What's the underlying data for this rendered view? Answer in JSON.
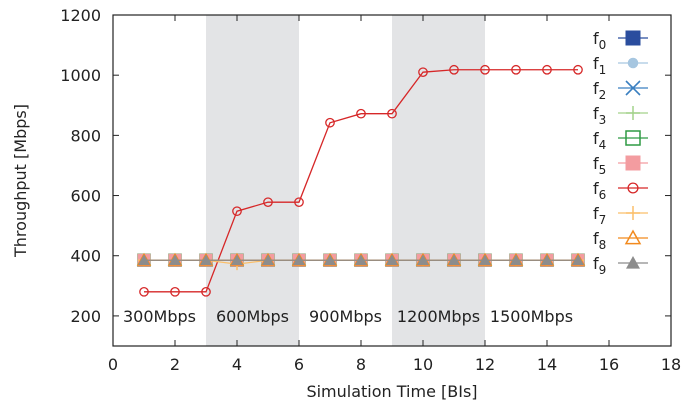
{
  "chart_data": {
    "type": "line",
    "xlabel": "Simulation Time [BIs]",
    "ylabel": "Throughput [Mbps]",
    "xlim": [
      0,
      18
    ],
    "ylim": [
      100,
      1200
    ],
    "xticks": [
      0,
      2,
      4,
      6,
      8,
      10,
      12,
      14,
      16,
      18
    ],
    "yticks": [
      200,
      400,
      600,
      800,
      1000,
      1200
    ],
    "grid": false,
    "legend_position": "right",
    "shaded_bands": [
      {
        "from": 3,
        "to": 6,
        "color": "#e3e4e6"
      },
      {
        "from": 9,
        "to": 12,
        "color": "#e3e4e6"
      }
    ],
    "annotations": [
      {
        "text": "300Mbps",
        "x": 1.5,
        "y": 200
      },
      {
        "text": "600Mbps",
        "x": 4.5,
        "y": 200
      },
      {
        "text": "900Mbps",
        "x": 7.5,
        "y": 200
      },
      {
        "text": "1200Mbps",
        "x": 10.5,
        "y": 200
      },
      {
        "text": "1500Mbps",
        "x": 13.5,
        "y": 200
      }
    ],
    "x": [
      1,
      2,
      3,
      4,
      5,
      6,
      7,
      8,
      9,
      10,
      11,
      12,
      13,
      14,
      15
    ],
    "series": [
      {
        "name": "f",
        "sub": "0",
        "color": "#2a4d9e",
        "marker": "square-filled",
        "values": [
          385,
          385,
          385,
          385,
          385,
          385,
          385,
          385,
          385,
          385,
          385,
          385,
          385,
          385,
          385
        ]
      },
      {
        "name": "f",
        "sub": "1",
        "color": "#a6c6e0",
        "marker": "circle-filled",
        "values": [
          385,
          385,
          385,
          385,
          385,
          385,
          385,
          385,
          385,
          385,
          385,
          385,
          385,
          385,
          385
        ]
      },
      {
        "name": "f",
        "sub": "2",
        "color": "#3a7fc0",
        "marker": "x",
        "values": [
          385,
          385,
          385,
          385,
          385,
          385,
          385,
          385,
          385,
          385,
          385,
          385,
          385,
          385,
          385
        ]
      },
      {
        "name": "f",
        "sub": "3",
        "color": "#a3d28a",
        "marker": "plus",
        "values": [
          385,
          385,
          385,
          385,
          385,
          385,
          385,
          385,
          385,
          385,
          385,
          385,
          385,
          385,
          385
        ]
      },
      {
        "name": "f",
        "sub": "4",
        "color": "#2f9a44",
        "marker": "square-open",
        "values": [
          385,
          385,
          385,
          385,
          385,
          385,
          385,
          385,
          385,
          385,
          385,
          385,
          385,
          385,
          385
        ]
      },
      {
        "name": "f",
        "sub": "5",
        "color": "#f39ca0",
        "marker": "square-filled",
        "values": [
          385,
          385,
          385,
          385,
          385,
          385,
          385,
          385,
          385,
          385,
          385,
          385,
          385,
          385,
          385
        ]
      },
      {
        "name": "f",
        "sub": "6",
        "color": "#d62728",
        "marker": "circle-open",
        "values": [
          280,
          280,
          280,
          548,
          578,
          578,
          842,
          872,
          872,
          1010,
          1018,
          1018,
          1018,
          1018,
          1018
        ]
      },
      {
        "name": "f",
        "sub": "7",
        "color": "#fbbf6a",
        "marker": "plus",
        "values": [
          385,
          385,
          385,
          372,
          385,
          385,
          385,
          385,
          385,
          385,
          385,
          385,
          385,
          385,
          385
        ]
      },
      {
        "name": "f",
        "sub": "8",
        "color": "#f28a1e",
        "marker": "triangle-open",
        "values": [
          385,
          385,
          385,
          385,
          385,
          385,
          385,
          385,
          385,
          385,
          385,
          385,
          385,
          385,
          385
        ]
      },
      {
        "name": "f",
        "sub": "9",
        "color": "#8c8c8c",
        "marker": "triangle-filled",
        "values": [
          385,
          385,
          385,
          385,
          385,
          385,
          385,
          385,
          385,
          385,
          385,
          385,
          385,
          385,
          385
        ]
      }
    ]
  }
}
